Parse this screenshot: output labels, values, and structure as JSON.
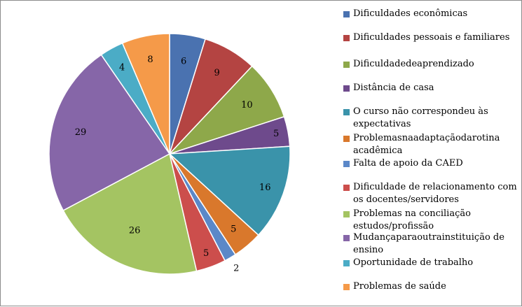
{
  "chart_data": {
    "type": "pie",
    "categories": [
      "Dificuldades econômicas",
      "Dificuldades pessoais e familiares",
      "Dificuldadedeaprendizado",
      "Distância de casa",
      "O curso não correspondeu às expectativas",
      "Problemasnaadaptaçãodarotina acadêmica",
      "Falta de apoio da CAED",
      "Dificuldade de relacionamento com os docentes/servidores",
      "Problemas na conciliação estudos/profissão",
      "Mudançaparaoutrainstituição de ensino",
      "Oportunidade de trabalho",
      "Problemas de saúde"
    ],
    "values": [
      6,
      9,
      10,
      5,
      16,
      5,
      2,
      5,
      26,
      29,
      4,
      8
    ],
    "colors": [
      "#4a72b0",
      "#b44442",
      "#8ea84a",
      "#6e4a8c",
      "#3a93aa",
      "#d9782c",
      "#5b88c8",
      "#cc4e4c",
      "#a4c462",
      "#8666a8",
      "#4bacc6",
      "#f59a49"
    ],
    "start_angle_deg": 0,
    "direction": "clockwise",
    "legend_position": "right"
  }
}
